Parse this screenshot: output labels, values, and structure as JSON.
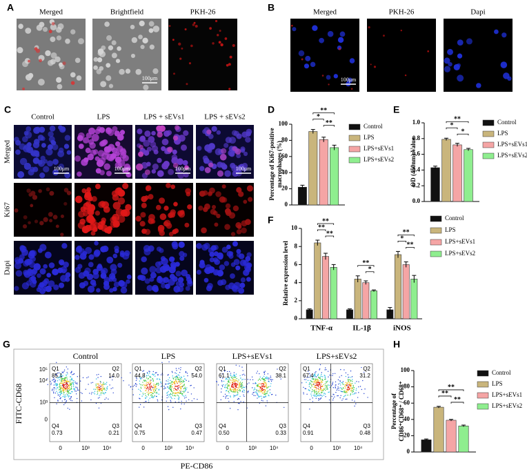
{
  "panels": {
    "A": {
      "label": "A",
      "titles": [
        "Merged",
        "Brightfield",
        "PKH-26"
      ],
      "scale_bar": "100μm"
    },
    "B": {
      "label": "B",
      "titles": [
        "Merged",
        "PKH-26",
        "Dapi"
      ],
      "scale_bar": "100μm"
    },
    "C": {
      "label": "C",
      "columns": [
        "Control",
        "LPS",
        "LPS + sEVs1",
        "LPS + sEVs2"
      ],
      "rows": [
        "Merged",
        "Ki67",
        "Dapi"
      ],
      "scale_bar": "100μm"
    },
    "G": {
      "label": "G",
      "y_axis_label": "FITC-CD68",
      "x_axis_label": "PE-CD86",
      "y_ticks": [
        "10⁵",
        "10⁴",
        "10³",
        "0"
      ],
      "x_ticks": [
        "0",
        "10³",
        "10⁴"
      ],
      "plots": [
        {
          "title": "Control",
          "quadrants": [
            {
              "name": "Q1",
              "value": "85.1"
            },
            {
              "name": "Q2",
              "value": "14.0"
            },
            {
              "name": "Q3",
              "value": "0.21"
            },
            {
              "name": "Q4",
              "value": "0.73"
            }
          ]
        },
        {
          "title": "LPS",
          "quadrants": [
            {
              "name": "Q1",
              "value": "44.8"
            },
            {
              "name": "Q2",
              "value": "54.0"
            },
            {
              "name": "Q3",
              "value": "0.47"
            },
            {
              "name": "Q4",
              "value": "0.75"
            }
          ]
        },
        {
          "title": "LPS+sEVs1",
          "quadrants": [
            {
              "name": "Q1",
              "value": "61.1"
            },
            {
              "name": "Q2",
              "value": "38.1"
            },
            {
              "name": "Q3",
              "value": "0.33"
            },
            {
              "name": "Q4",
              "value": "0.50"
            }
          ]
        },
        {
          "title": "LPS+sEVs2",
          "quadrants": [
            {
              "name": "Q1",
              "value": "67.4"
            },
            {
              "name": "Q2",
              "value": "31.2"
            },
            {
              "name": "Q3",
              "value": "0.48"
            },
            {
              "name": "Q4",
              "value": "0.91"
            }
          ]
        }
      ]
    }
  },
  "chart_data": [
    {
      "type": "bar",
      "label": "D",
      "y_label": [
        "Percentage of Ki67-positive",
        "macrophages (%)"
      ],
      "categories": [
        null
      ],
      "series": [
        {
          "name": "Control",
          "color": "#111111",
          "values": [
            22
          ],
          "errors": [
            2.5
          ]
        },
        {
          "name": "LPS",
          "color": "#c9b57c",
          "values": [
            91
          ],
          "errors": [
            2.5
          ]
        },
        {
          "name": "LPS+sEVs1",
          "color": "#f5a5a5",
          "values": [
            81
          ],
          "errors": [
            3
          ]
        },
        {
          "name": "LPS+sEVs2",
          "color": "#8fee8f",
          "values": [
            71
          ],
          "errors": [
            3
          ]
        }
      ],
      "ylim": [
        0,
        100
      ],
      "yticks": [
        0,
        20,
        40,
        60,
        80,
        100
      ],
      "annotations": [
        "**",
        "*",
        "**"
      ]
    },
    {
      "type": "bar",
      "label": "E",
      "y_label": [
        "OD (450nm) Value"
      ],
      "categories": [
        null
      ],
      "series": [
        {
          "name": "Control",
          "color": "#111111",
          "values": [
            0.43
          ],
          "errors": [
            0.02
          ]
        },
        {
          "name": "LPS",
          "color": "#c9b57c",
          "values": [
            0.79
          ],
          "errors": [
            0.015
          ]
        },
        {
          "name": "LPS+sEVs1",
          "color": "#f5a5a5",
          "values": [
            0.72
          ],
          "errors": [
            0.02
          ]
        },
        {
          "name": "LPS+sEVs2",
          "color": "#8fee8f",
          "values": [
            0.66
          ],
          "errors": [
            0.015
          ]
        }
      ],
      "ylim": [
        0,
        1
      ],
      "yticks": [
        {
          "value": 0,
          "label": "0.0"
        },
        0.2,
        0.4,
        0.6,
        0.8,
        {
          "value": 1,
          "label": "1.0"
        }
      ],
      "annotations": [
        "**",
        "*",
        "*"
      ]
    },
    {
      "type": "bar",
      "label": "F",
      "y_label": [
        "Relative expression level"
      ],
      "categories": [
        "TNF-α",
        "IL-1β",
        "iNOS"
      ],
      "series": [
        {
          "name": "Control",
          "color": "#111111",
          "values": [
            1,
            1,
            1
          ],
          "errors": [
            0.1,
            0.1,
            0.25
          ]
        },
        {
          "name": "LPS",
          "color": "#c9b57c",
          "values": [
            8.4,
            4.4,
            7.1
          ],
          "errors": [
            0.3,
            0.35,
            0.35
          ]
        },
        {
          "name": "LPS+sEVs1",
          "color": "#f5a5a5",
          "values": [
            6.9,
            4.0,
            6.0
          ],
          "errors": [
            0.35,
            0.2,
            0.3
          ]
        },
        {
          "name": "LPS+sEVs2",
          "color": "#8fee8f",
          "values": [
            5.7,
            3.1,
            4.4
          ],
          "errors": [
            0.3,
            0.1,
            0.4
          ]
        }
      ],
      "ylim": [
        0,
        10
      ],
      "yticks": [
        0,
        2,
        4,
        6,
        8,
        10
      ],
      "annotations": [
        "**",
        "**",
        "**",
        "**",
        "*",
        "**",
        "*",
        "**"
      ]
    },
    {
      "type": "bar",
      "label": "H",
      "y_label": [
        "Percentage of",
        "CD86⁺CD68⁺ / CD68⁺"
      ],
      "categories": [
        null
      ],
      "series": [
        {
          "name": "Control",
          "color": "#111111",
          "values": [
            15
          ],
          "errors": [
            1
          ]
        },
        {
          "name": "LPS",
          "color": "#c9b57c",
          "values": [
            55
          ],
          "errors": [
            1
          ]
        },
        {
          "name": "LPS+sEVs1",
          "color": "#f5a5a5",
          "values": [
            39
          ],
          "errors": [
            1
          ]
        },
        {
          "name": "LPS+sEVs2",
          "color": "#8fee8f",
          "values": [
            32
          ],
          "errors": [
            1
          ]
        }
      ],
      "ylim": [
        0,
        100
      ],
      "yticks": [
        0,
        20,
        40,
        60,
        80,
        100
      ],
      "annotations": [
        "**",
        "**",
        "**"
      ]
    }
  ]
}
